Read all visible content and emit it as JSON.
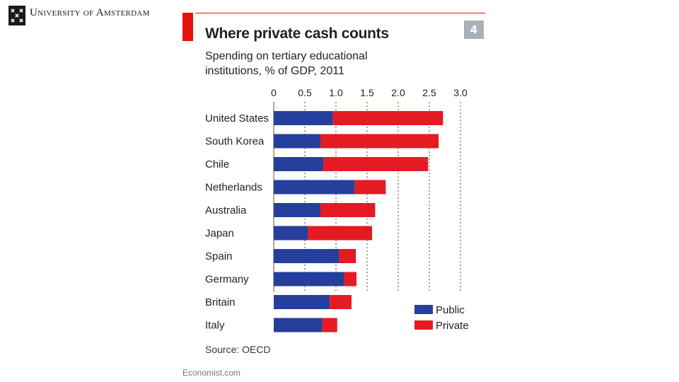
{
  "header": {
    "institution": "University of Amsterdam"
  },
  "chart_card": {
    "number": "4",
    "source": "Source: OECD",
    "credit": "Economist.com"
  },
  "colors": {
    "public": "#263f9c",
    "private": "#e41b23",
    "accent": "#e3120b"
  },
  "chart_data": {
    "type": "bar",
    "orientation": "horizontal",
    "stacked": true,
    "title": "Where private cash counts",
    "subtitle": "Spending on tertiary educational institutions, % of GDP, 2011",
    "xlabel": "",
    "ylabel": "",
    "xlim": [
      0,
      3.0
    ],
    "x_ticks": [
      "0",
      "0.5",
      "1.0",
      "1.5",
      "2.0",
      "2.5",
      "3.0"
    ],
    "x_tick_values": [
      0,
      0.5,
      1.0,
      1.5,
      2.0,
      2.5,
      3.0
    ],
    "gridlines": "dotted vertical",
    "legend_position": "bottom-right",
    "categories": [
      "United States",
      "South Korea",
      "Chile",
      "Netherlands",
      "Australia",
      "Japan",
      "Spain",
      "Germany",
      "Britain",
      "Italy"
    ],
    "series": [
      {
        "name": "Public",
        "values": [
          0.95,
          0.75,
          0.8,
          1.3,
          0.75,
          0.55,
          1.05,
          1.13,
          0.9,
          0.78
        ]
      },
      {
        "name": "Private",
        "values": [
          1.77,
          1.9,
          1.68,
          0.5,
          0.88,
          1.03,
          0.27,
          0.2,
          0.35,
          0.24
        ]
      }
    ]
  }
}
